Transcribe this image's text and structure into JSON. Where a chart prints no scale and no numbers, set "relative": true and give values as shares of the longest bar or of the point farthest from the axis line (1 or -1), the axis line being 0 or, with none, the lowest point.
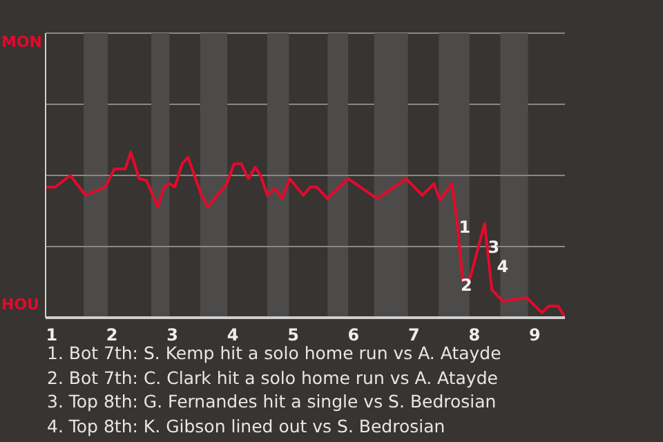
{
  "chart_data": {
    "type": "line",
    "relative": true,
    "xlim": [
      0.9,
      9.5
    ],
    "xticks": [
      1,
      2,
      3,
      4,
      5,
      6,
      7,
      8,
      9
    ],
    "marker": "none",
    "ref_lines": [
      {
        "axis": "y",
        "value": 0.43,
        "color": "#8a8886"
      },
      {
        "axis": "y",
        "value": 0.86,
        "color": "#8a8886"
      }
    ],
    "line_style": "solid",
    "series": [
      {
        "color": "#e30a2c",
        "x": [
          0.9,
          1.06,
          1.31,
          1.56,
          1.89,
          2.04,
          2.22,
          2.31,
          2.45,
          2.57,
          2.76,
          2.86,
          2.96,
          3.04,
          3.16,
          3.26,
          3.48,
          3.59,
          3.9,
          4.02,
          4.14,
          4.26,
          4.37,
          4.46,
          4.57,
          4.7,
          4.82,
          4.94,
          5.17,
          5.28,
          5.39,
          5.57,
          5.91,
          6.39,
          6.87,
          7.14,
          7.33,
          7.43,
          7.63,
          7.71,
          7.81,
          7.93,
          8.17,
          8.29,
          8.47,
          8.87,
          9.12,
          9.23,
          9.39,
          9.5
        ],
        "values": [
          0.79,
          0.79,
          0.86,
          0.74,
          0.79,
          0.9,
          0.9,
          1,
          0.84,
          0.83,
          0.67,
          0.79,
          0.81,
          0.79,
          0.93,
          0.97,
          0.74,
          0.67,
          0.81,
          0.93,
          0.93,
          0.84,
          0.91,
          0.86,
          0.74,
          0.78,
          0.72,
          0.84,
          0.74,
          0.79,
          0.79,
          0.72,
          0.84,
          0.72,
          0.84,
          0.74,
          0.81,
          0.71,
          0.81,
          0.59,
          0.22,
          0.24,
          0.57,
          0.17,
          0.1,
          0.12,
          0.03,
          0.07,
          0.07,
          0
        ]
      }
    ],
    "bands": [
      {
        "axis": "x",
        "from": 1.53,
        "to": 1.93,
        "color": "#4d4b49"
      },
      {
        "axis": "x",
        "from": 2.65,
        "to": 2.95,
        "color": "#4d4b49"
      },
      {
        "axis": "x",
        "from": 3.46,
        "to": 3.91,
        "color": "#4d4b49"
      },
      {
        "axis": "x",
        "from": 4.57,
        "to": 4.93,
        "color": "#4d4b49"
      },
      {
        "axis": "x",
        "from": 5.57,
        "to": 5.91,
        "color": "#4d4b49"
      },
      {
        "axis": "x",
        "from": 6.34,
        "to": 6.9,
        "color": "#4d4b49"
      },
      {
        "axis": "x",
        "from": 7.41,
        "to": 7.92,
        "color": "#4d4b49"
      },
      {
        "axis": "x",
        "from": 8.43,
        "to": 8.89,
        "color": "#4d4b49"
      }
    ],
    "annotations": [
      "MON",
      "HOU",
      {
        "text": "1",
        "x": 7.84,
        "y": 0.55
      },
      {
        "text": "2",
        "x": 7.87,
        "y": 0.2
      },
      {
        "text": "3",
        "x": 8.32,
        "y": 0.43
      },
      {
        "text": "4",
        "x": 8.47,
        "y": 0.31
      },
      "1. Bot 7th: S. Kemp hit a solo home run vs A. Atayde",
      "2. Bot 7th: C. Clark hit a solo home run vs A. Atayde",
      "3. Top 8th: G. Fernandes hit a single vs S. Bedrosian",
      "4. Top 8th: K. Gibson lined out vs S. Bedrosian"
    ]
  }
}
